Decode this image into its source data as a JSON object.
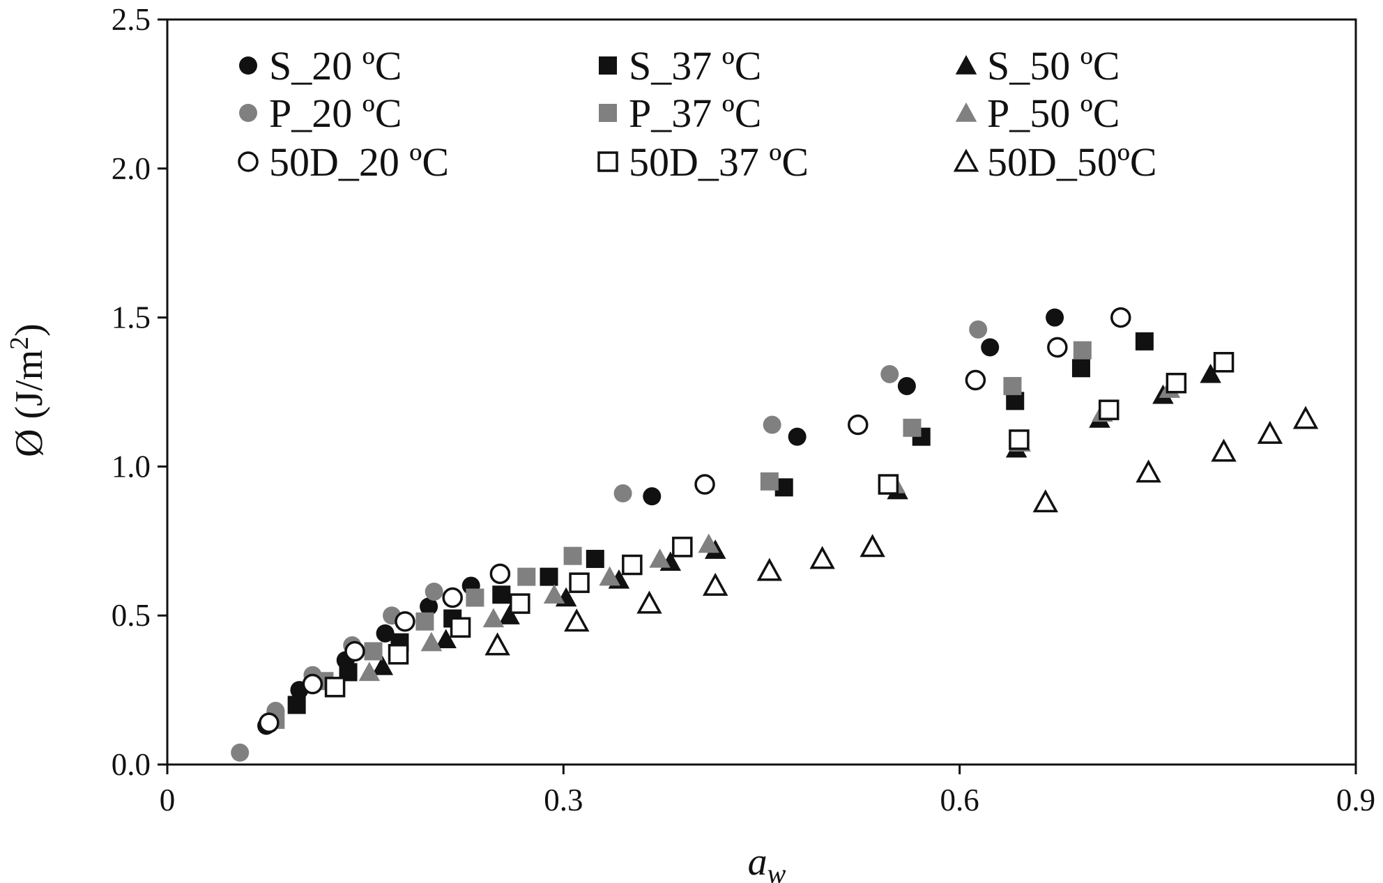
{
  "chart_data": {
    "type": "scatter",
    "title": "",
    "xlabel": "a",
    "xlabel_sub": "w",
    "ylabel": "Ø (J/m",
    "ylabel_sup": "2",
    "ylabel_close": ")",
    "xlim": [
      0,
      0.9
    ],
    "ylim": [
      0,
      2.5
    ],
    "x_ticks": [
      {
        "value": 0,
        "label": "0"
      },
      {
        "value": 0.3,
        "label": "0.3"
      },
      {
        "value": 0.6,
        "label": "0.6"
      },
      {
        "value": 0.9,
        "label": "0.9"
      }
    ],
    "y_ticks": [
      {
        "value": 0,
        "label": "0.0"
      },
      {
        "value": 0.5,
        "label": "0.5"
      },
      {
        "value": 1.0,
        "label": "1.0"
      },
      {
        "value": 1.5,
        "label": "1.5"
      },
      {
        "value": 2.0,
        "label": "2.0"
      },
      {
        "value": 2.5,
        "label": "2.5"
      }
    ],
    "grid": false,
    "legend_position": "top-left, three columns",
    "colors": {
      "black": "#111111",
      "gray": "#808080",
      "open": "#ffffff"
    },
    "series": [
      {
        "name": "S_20 ºC",
        "marker": "circle",
        "fill": "black",
        "points": [
          [
            0.075,
            0.13
          ],
          [
            0.1,
            0.25
          ],
          [
            0.135,
            0.35
          ],
          [
            0.165,
            0.44
          ],
          [
            0.198,
            0.53
          ],
          [
            0.23,
            0.6
          ],
          [
            0.367,
            0.9
          ],
          [
            0.477,
            1.1
          ],
          [
            0.56,
            1.27
          ],
          [
            0.623,
            1.4
          ],
          [
            0.672,
            1.5
          ]
        ]
      },
      {
        "name": "S_37 ºC",
        "marker": "square",
        "fill": "black",
        "points": [
          [
            0.098,
            0.2
          ],
          [
            0.137,
            0.31
          ],
          [
            0.176,
            0.41
          ],
          [
            0.216,
            0.49
          ],
          [
            0.253,
            0.57
          ],
          [
            0.289,
            0.63
          ],
          [
            0.324,
            0.69
          ],
          [
            0.467,
            0.93
          ],
          [
            0.571,
            1.1
          ],
          [
            0.642,
            1.22
          ],
          [
            0.692,
            1.33
          ],
          [
            0.74,
            1.42
          ]
        ]
      },
      {
        "name": "S_50 ºC",
        "marker": "triangle",
        "fill": "black",
        "points": [
          [
            0.163,
            0.33
          ],
          [
            0.211,
            0.42
          ],
          [
            0.259,
            0.5
          ],
          [
            0.302,
            0.56
          ],
          [
            0.342,
            0.62
          ],
          [
            0.381,
            0.68
          ],
          [
            0.415,
            0.72
          ],
          [
            0.553,
            0.92
          ],
          [
            0.643,
            1.06
          ],
          [
            0.706,
            1.16
          ],
          [
            0.754,
            1.24
          ],
          [
            0.79,
            1.31
          ]
        ]
      },
      {
        "name": "P_20 ºC",
        "marker": "circle",
        "fill": "gray",
        "points": [
          [
            0.055,
            0.04
          ],
          [
            0.082,
            0.18
          ],
          [
            0.11,
            0.3
          ],
          [
            0.14,
            0.4
          ],
          [
            0.17,
            0.5
          ],
          [
            0.202,
            0.58
          ],
          [
            0.345,
            0.91
          ],
          [
            0.458,
            1.14
          ],
          [
            0.547,
            1.31
          ],
          [
            0.614,
            1.46
          ]
        ]
      },
      {
        "name": "P_37 ºC",
        "marker": "square",
        "fill": "gray",
        "points": [
          [
            0.082,
            0.15
          ],
          [
            0.119,
            0.28
          ],
          [
            0.156,
            0.38
          ],
          [
            0.195,
            0.48
          ],
          [
            0.233,
            0.56
          ],
          [
            0.272,
            0.63
          ],
          [
            0.307,
            0.7
          ],
          [
            0.456,
            0.95
          ],
          [
            0.564,
            1.13
          ],
          [
            0.64,
            1.27
          ],
          [
            0.693,
            1.39
          ]
        ]
      },
      {
        "name": "P_50 ºC",
        "marker": "triangle",
        "fill": "gray",
        "points": [
          [
            0.153,
            0.31
          ],
          [
            0.2,
            0.41
          ],
          [
            0.247,
            0.49
          ],
          [
            0.293,
            0.57
          ],
          [
            0.335,
            0.63
          ],
          [
            0.373,
            0.69
          ],
          [
            0.41,
            0.74
          ],
          [
            0.551,
            0.94
          ],
          [
            0.646,
            1.08
          ],
          [
            0.708,
            1.18
          ],
          [
            0.759,
            1.26
          ]
        ]
      },
      {
        "name": "50D_20 ºC",
        "marker": "circle",
        "fill": "open",
        "points": [
          [
            0.077,
            0.14
          ],
          [
            0.11,
            0.27
          ],
          [
            0.142,
            0.38
          ],
          [
            0.18,
            0.48
          ],
          [
            0.216,
            0.56
          ],
          [
            0.252,
            0.64
          ],
          [
            0.407,
            0.94
          ],
          [
            0.523,
            1.14
          ],
          [
            0.612,
            1.29
          ],
          [
            0.674,
            1.4
          ],
          [
            0.722,
            1.5
          ]
        ]
      },
      {
        "name": "50D_37 ºC",
        "marker": "square",
        "fill": "open",
        "points": [
          [
            0.127,
            0.26
          ],
          [
            0.175,
            0.37
          ],
          [
            0.222,
            0.46
          ],
          [
            0.267,
            0.54
          ],
          [
            0.312,
            0.61
          ],
          [
            0.352,
            0.67
          ],
          [
            0.39,
            0.73
          ],
          [
            0.546,
            0.94
          ],
          [
            0.645,
            1.09
          ],
          [
            0.713,
            1.19
          ],
          [
            0.764,
            1.28
          ],
          [
            0.8,
            1.35
          ]
        ]
      },
      {
        "name": "50D_50ºC",
        "marker": "triangle",
        "fill": "open",
        "points": [
          [
            0.25,
            0.4
          ],
          [
            0.31,
            0.48
          ],
          [
            0.365,
            0.54
          ],
          [
            0.415,
            0.6
          ],
          [
            0.456,
            0.65
          ],
          [
            0.496,
            0.69
          ],
          [
            0.534,
            0.73
          ],
          [
            0.665,
            0.88
          ],
          [
            0.743,
            0.98
          ],
          [
            0.8,
            1.05
          ],
          [
            0.835,
            1.11
          ],
          [
            0.862,
            1.16
          ]
        ]
      }
    ]
  }
}
